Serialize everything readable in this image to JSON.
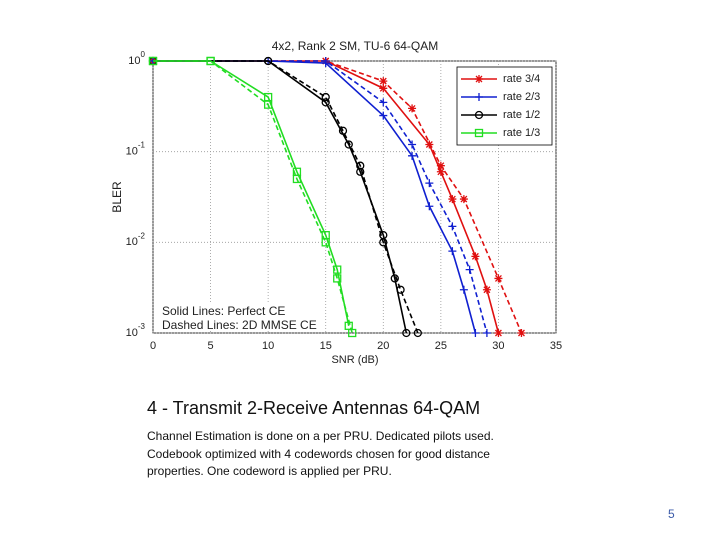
{
  "chart_data": {
    "type": "line",
    "title": "4x2, Rank 2 SM, TU-6 64-QAM",
    "x_label": "SNR (dB)",
    "y_label": "BLER",
    "xlim": [
      0,
      35
    ],
    "xticks": [
      0,
      5,
      10,
      15,
      20,
      25,
      30,
      35
    ],
    "ylim": [
      0.001,
      1
    ],
    "log_y": true,
    "yticks": [
      {
        "value": 1,
        "label": "10^0"
      },
      {
        "value": 0.1,
        "label": "10^-1"
      },
      {
        "value": 0.01,
        "label": "10^-2"
      },
      {
        "value": 0.001,
        "label": "10^-3"
      }
    ],
    "grid": true,
    "legend": "upper right",
    "annotations": [
      "Solid Lines: Perfect CE",
      "Dashed Lines: 2D MMSE CE"
    ],
    "series": [
      {
        "name": "rate 3/4",
        "color": "#e01010",
        "marker": "star",
        "x": [
          0,
          15,
          20,
          24,
          25,
          26,
          28,
          29,
          30
        ],
        "values": [
          1,
          1,
          0.5,
          0.12,
          0.06,
          0.03,
          0.007,
          0.003,
          0.001
        ],
        "dashed_x": [
          0,
          15,
          20,
          22.5,
          25,
          27,
          30,
          32
        ],
        "dashed_values": [
          1,
          1,
          0.6,
          0.3,
          0.07,
          0.03,
          0.004,
          0.001
        ]
      },
      {
        "name": "rate 2/3",
        "color": "#1020d0",
        "marker": "plus",
        "x": [
          0,
          10,
          15,
          20,
          22.5,
          24,
          26,
          27,
          28
        ],
        "values": [
          1,
          1,
          0.95,
          0.25,
          0.09,
          0.025,
          0.008,
          0.003,
          0.001
        ],
        "dashed_x": [
          0,
          15,
          20,
          22.5,
          24,
          26,
          27.5,
          29
        ],
        "dashed_values": [
          1,
          1,
          0.35,
          0.12,
          0.045,
          0.015,
          0.005,
          0.001
        ]
      },
      {
        "name": "rate 1/2",
        "color": "#000000",
        "marker": "circle",
        "x": [
          0,
          10,
          15,
          17,
          18,
          20,
          21,
          22
        ],
        "values": [
          1,
          1,
          0.35,
          0.12,
          0.06,
          0.012,
          0.004,
          0.001
        ],
        "dashed_x": [
          0,
          10,
          15,
          16.5,
          18,
          20,
          21.5,
          23
        ],
        "dashed_values": [
          1,
          1,
          0.4,
          0.17,
          0.07,
          0.01,
          0.003,
          0.001
        ]
      },
      {
        "name": "rate 1/3",
        "color": "#22dd22",
        "marker": "square",
        "x": [
          0,
          5,
          10,
          12.5,
          15,
          16,
          17
        ],
        "values": [
          1,
          1,
          0.4,
          0.06,
          0.012,
          0.005,
          0.0012
        ],
        "dashed_x": [
          0,
          5,
          10,
          12.5,
          15,
          16,
          17.3
        ],
        "dashed_values": [
          1,
          1,
          0.33,
          0.05,
          0.01,
          0.004,
          0.001
        ]
      }
    ]
  },
  "slide": {
    "heading": "4 - Transmit 2-Receive Antennas 64-QAM",
    "body": [
      "Channel Estimation is done on a per PRU.  Dedicated pilots used.",
      "Codebook optimized with 4 codewords chosen for good distance",
      "properties.  One codeword is applied per PRU."
    ],
    "page_number": "5"
  }
}
